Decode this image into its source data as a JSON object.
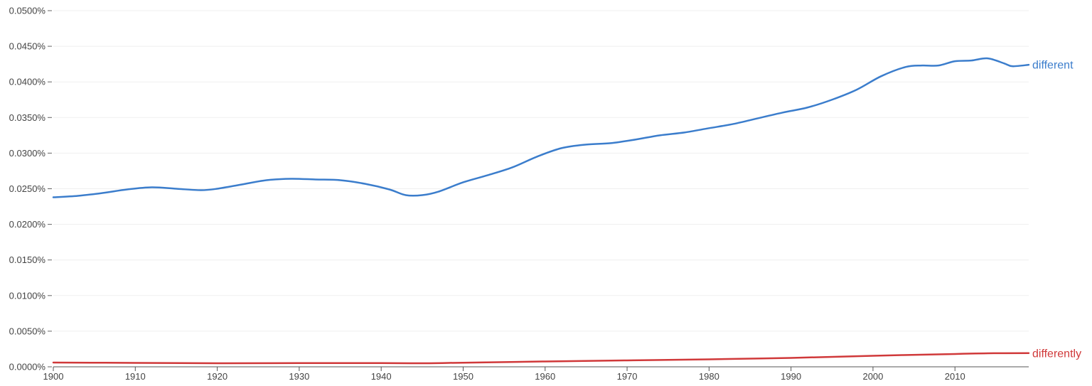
{
  "chart_data": {
    "type": "line",
    "title": "",
    "xlabel": "",
    "ylabel": "",
    "xlim": [
      1900,
      2019
    ],
    "ylim": [
      0,
      0.0005
    ],
    "grid": true,
    "legend": "inline labels at line ends",
    "x_ticks": [
      1900,
      1910,
      1920,
      1930,
      1940,
      1950,
      1960,
      1970,
      1980,
      1990,
      2000,
      2010
    ],
    "x_tick_labels": [
      "1900",
      "1910",
      "1920",
      "1930",
      "1940",
      "1950",
      "1960",
      "1970",
      "1980",
      "1990",
      "2000",
      "2010"
    ],
    "y_ticks": [
      0,
      5e-05,
      0.0001,
      0.00015,
      0.0002,
      0.00025,
      0.0003,
      0.00035,
      0.0004,
      0.00045,
      0.0005
    ],
    "y_tick_labels": [
      "0.0000%",
      "0.0050%",
      "0.0100%",
      "0.0150%",
      "0.0200%",
      "0.0250%",
      "0.0300%",
      "0.0350%",
      "0.0400%",
      "0.0450%",
      "0.0500%"
    ],
    "series": [
      {
        "name": "different",
        "color": "#3b7dcc",
        "points": [
          [
            1900,
            0.000238
          ],
          [
            1903,
            0.00024
          ],
          [
            1906,
            0.000244
          ],
          [
            1909,
            0.000249
          ],
          [
            1912,
            0.000252
          ],
          [
            1915,
            0.00025
          ],
          [
            1918,
            0.000248
          ],
          [
            1920,
            0.00025
          ],
          [
            1923,
            0.000256
          ],
          [
            1926,
            0.000262
          ],
          [
            1929,
            0.000264
          ],
          [
            1932,
            0.000263
          ],
          [
            1935,
            0.000262
          ],
          [
            1938,
            0.000257
          ],
          [
            1941,
            0.000249
          ],
          [
            1943,
            0.000241
          ],
          [
            1945,
            0.000241
          ],
          [
            1947,
            0.000246
          ],
          [
            1950,
            0.000259
          ],
          [
            1953,
            0.000269
          ],
          [
            1956,
            0.00028
          ],
          [
            1959,
            0.000295
          ],
          [
            1962,
            0.000307
          ],
          [
            1965,
            0.000312
          ],
          [
            1968,
            0.000314
          ],
          [
            1971,
            0.000319
          ],
          [
            1974,
            0.000325
          ],
          [
            1977,
            0.000329
          ],
          [
            1980,
            0.000335
          ],
          [
            1983,
            0.000341
          ],
          [
            1986,
            0.000349
          ],
          [
            1989,
            0.000357
          ],
          [
            1992,
            0.000364
          ],
          [
            1995,
            0.000375
          ],
          [
            1998,
            0.000389
          ],
          [
            2001,
            0.000408
          ],
          [
            2004,
            0.000421
          ],
          [
            2006,
            0.000423
          ],
          [
            2008,
            0.000423
          ],
          [
            2010,
            0.000429
          ],
          [
            2012,
            0.00043
          ],
          [
            2014,
            0.000433
          ],
          [
            2016,
            0.000426
          ],
          [
            2017,
            0.000422
          ],
          [
            2019,
            0.000424
          ]
        ],
        "label": "different"
      },
      {
        "name": "differently",
        "color": "#d0393a",
        "points": [
          [
            1900,
            6e-06
          ],
          [
            1910,
            5.5e-06
          ],
          [
            1920,
            5e-06
          ],
          [
            1930,
            5.2e-06
          ],
          [
            1940,
            5.3e-06
          ],
          [
            1945,
            5e-06
          ],
          [
            1950,
            5.8e-06
          ],
          [
            1960,
            7.5e-06
          ],
          [
            1970,
            9e-06
          ],
          [
            1980,
            1.05e-05
          ],
          [
            1990,
            1.25e-05
          ],
          [
            2000,
            1.55e-05
          ],
          [
            2010,
            1.8e-05
          ],
          [
            2014,
            1.9e-05
          ],
          [
            2019,
            1.92e-05
          ]
        ],
        "label": "differently"
      }
    ]
  }
}
